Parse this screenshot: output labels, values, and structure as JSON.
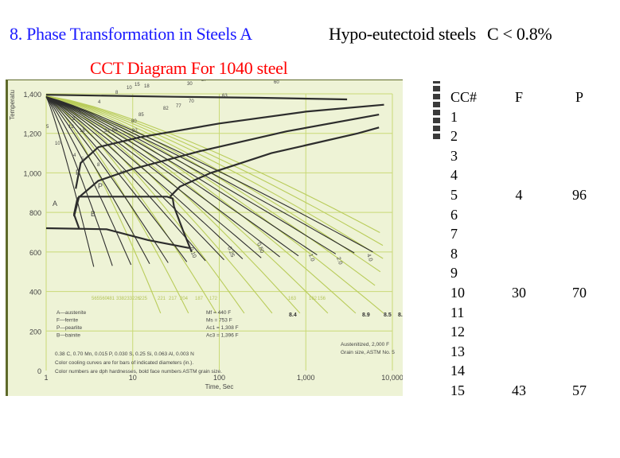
{
  "header": {
    "title": "8. Phase Transformation in Steels  A",
    "subtitle_right_1": "Hypo-eutectoid steels",
    "subtitle_right_2": "C < 0.8%",
    "diagram_title": "CCT Diagram For 1040 steel",
    "colors": {
      "title": "#1a1aff",
      "diagram_title": "#ff0000",
      "subtitle_right": "#000000"
    }
  },
  "chart_data": {
    "type": "line",
    "title": "CCT Diagram For 1040 steel",
    "xlabel": "Time, Sec",
    "ylabel": "Temperature",
    "x_scale": "log",
    "xlim": [
      1,
      10000
    ],
    "ylim": [
      0,
      1400
    ],
    "x_ticks": [
      "1",
      "10",
      "100",
      "1,000",
      "10,000"
    ],
    "y_ticks": [
      "0",
      "200",
      "400",
      "600",
      "800",
      "1,000",
      "1,200",
      "1,400"
    ],
    "grid": true,
    "background": "#eef3d6",
    "regions": [
      {
        "label": "A",
        "meaning": "austenite"
      },
      {
        "label": "F",
        "meaning": "ferrite"
      },
      {
        "label": "P",
        "meaning": "pearlite"
      },
      {
        "label": "B",
        "meaning": "bainite"
      }
    ],
    "legend": [
      "A—austenite",
      "F—ferrite",
      "P—pearlite",
      "B—bainite"
    ],
    "transformation_temperatures": [
      "Mf = 440 F",
      "Ms = 753 F",
      "Ac1 = 1,308 F",
      "Ac3 = 1,396 F"
    ],
    "composition": "0.38 C, 0.70 Mn, 0.015 P, 0.030 S, 0.25 Si, 0.063 Al, 0.003 N",
    "notes": [
      "Color cooling curves are for bars of indicated diameters (in.).",
      "Color numbers are dph hardnesses, bold face numbers ASTM grain size."
    ],
    "conditions": [
      "Austenitized, 2,000 F",
      "Grain size, ASTM No. 5"
    ],
    "bar_diameters_in": [
      "0.10",
      "0.25",
      "0.50",
      "1.0",
      "2.0",
      "4.0"
    ],
    "hardness_dph": [
      "565",
      "560",
      "481",
      "338",
      "233",
      "226",
      "225",
      "221",
      "217",
      "204",
      "187",
      "172",
      "163",
      "162",
      "156"
    ],
    "grain_sizes_astm": [
      "8.4",
      "8.9",
      "8.5",
      "8.0"
    ],
    "phase_percent_labels": {
      "ferrite": [
        "3",
        "4",
        "8",
        "10",
        "15",
        "18",
        "23",
        "30",
        "37",
        "40",
        "44",
        "47",
        "53"
      ],
      "pearlite": [
        "12",
        "18",
        "33",
        "66",
        "82",
        "85",
        "82",
        "77",
        "70",
        "63",
        "60",
        "56"
      ],
      "bainite": [
        "10",
        "4",
        "5",
        "8",
        "40"
      ],
      "austenite_to_F": [
        "5"
      ]
    },
    "cooling_curves": [
      {
        "x": [
          1,
          3,
          8,
          20
        ],
        "y": [
          1400,
          1000,
          700,
          520
        ]
      },
      {
        "x": [
          1,
          4,
          10,
          25
        ],
        "y": [
          1400,
          1000,
          700,
          520
        ]
      },
      {
        "x": [
          1,
          6,
          15,
          40
        ],
        "y": [
          1400,
          1000,
          700,
          520
        ]
      },
      {
        "x": [
          1,
          9,
          25,
          60
        ],
        "y": [
          1400,
          1000,
          700,
          520
        ]
      },
      {
        "x": [
          1,
          14,
          40,
          100
        ],
        "y": [
          1400,
          1000,
          700,
          520
        ]
      },
      {
        "x": [
          1,
          25,
          70,
          180
        ],
        "y": [
          1400,
          1000,
          700,
          520
        ]
      },
      {
        "x": [
          1,
          40,
          130,
          350
        ],
        "y": [
          1400,
          1000,
          700,
          520
        ]
      },
      {
        "x": [
          1,
          80,
          250,
          700
        ],
        "y": [
          1400,
          1000,
          700,
          520
        ]
      },
      {
        "x": [
          1,
          200,
          700,
          2000
        ],
        "y": [
          1400,
          1000,
          700,
          520
        ]
      },
      {
        "x": [
          1,
          600,
          2000,
          6000
        ],
        "y": [
          1400,
          1000,
          700,
          520
        ]
      }
    ]
  },
  "table": {
    "headers": [
      "CC#",
      "F",
      "P"
    ],
    "rows": [
      [
        "1",
        "",
        ""
      ],
      [
        "2",
        "",
        ""
      ],
      [
        "3",
        "",
        ""
      ],
      [
        "4",
        "",
        ""
      ],
      [
        "5",
        "4",
        "96"
      ],
      [
        "6",
        "",
        ""
      ],
      [
        "7",
        "",
        ""
      ],
      [
        "8",
        "",
        ""
      ],
      [
        "9",
        "",
        ""
      ],
      [
        "10",
        "30",
        "70"
      ],
      [
        "11",
        "",
        ""
      ],
      [
        "12",
        "",
        ""
      ],
      [
        "13",
        "",
        ""
      ],
      [
        "14",
        "",
        ""
      ],
      [
        "15",
        "43",
        "57"
      ]
    ]
  }
}
